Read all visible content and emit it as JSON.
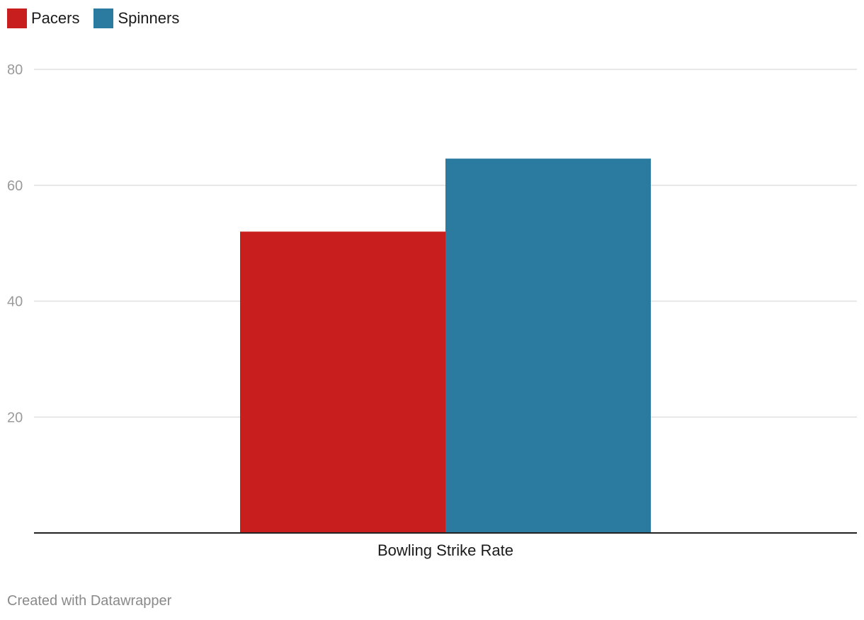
{
  "chart_data": {
    "type": "bar",
    "categories": [
      "Bowling Strike Rate"
    ],
    "series": [
      {
        "name": "Pacers",
        "values": [
          52
        ],
        "color": "#c81e1e"
      },
      {
        "name": "Spinners",
        "values": [
          64.6
        ],
        "color": "#2b7aa0"
      }
    ],
    "ylim": [
      0,
      80
    ],
    "yticks": [
      20,
      40,
      60,
      80
    ],
    "grid": true,
    "legend_position": "top-left"
  },
  "footer": {
    "credit": "Created with Datawrapper"
  }
}
